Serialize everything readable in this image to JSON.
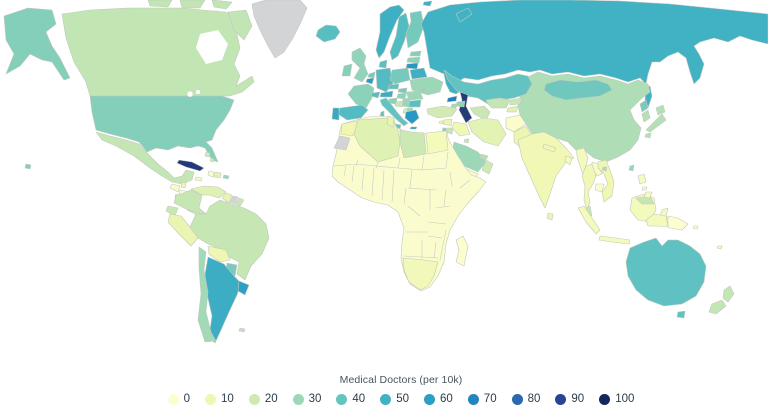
{
  "legend": {
    "title": "Medical Doctors (per 10k)",
    "stops": [
      {
        "value": "0",
        "color": "#fdfdd2"
      },
      {
        "value": "10",
        "color": "#eff7b3"
      },
      {
        "value": "20",
        "color": "#cfe9b3"
      },
      {
        "value": "30",
        "color": "#9cd8b7"
      },
      {
        "value": "40",
        "color": "#66c4be"
      },
      {
        "value": "50",
        "color": "#41b2c4"
      },
      {
        "value": "60",
        "color": "#2d9fc5"
      },
      {
        "value": "70",
        "color": "#1f86be"
      },
      {
        "value": "80",
        "color": "#2b69af"
      },
      {
        "value": "90",
        "color": "#2a4492"
      },
      {
        "value": "100",
        "color": "#14265c"
      }
    ]
  },
  "map": {
    "ocean_color": "#ffffff",
    "border_color": "#c3c8bf",
    "no_data_color": "#d2d4d6",
    "caspian_color": "#223c77",
    "countries": {
      "canada": {
        "label": "Canada",
        "value": 25,
        "color": "#c2e5b4"
      },
      "usa": {
        "label": "United States",
        "value": 36,
        "color": "#84cfba"
      },
      "greenland": {
        "label": "Greenland",
        "value": null,
        "color": "#d2d4d6"
      },
      "mexico": {
        "label": "Mexico",
        "value": 24,
        "color": "#c4e6b4"
      },
      "guatemala": {
        "label": "Guatemala",
        "value": 4,
        "color": "#fafbc9"
      },
      "belize": {
        "label": "Belize",
        "value": 11,
        "color": "#edf6b1"
      },
      "honduras": {
        "label": "Honduras",
        "value": 3,
        "color": "#fbfccc"
      },
      "el-salvador": {
        "label": "El Salvador",
        "value": 16,
        "color": "#e2f3b4"
      },
      "nicaragua": {
        "label": "Nicaragua",
        "value": 6,
        "color": "#f6fac2"
      },
      "costa-rica": {
        "label": "Costa Rica",
        "value": 25,
        "color": "#c2e5b4"
      },
      "panama": {
        "label": "Panama",
        "value": 16,
        "color": "#e2f3b4"
      },
      "cuba": {
        "label": "Cuba",
        "value": 84,
        "color": "#223a7d"
      },
      "jamaica": {
        "label": "Jamaica",
        "value": 5,
        "color": "#f8fac5"
      },
      "haiti": {
        "label": "Haiti",
        "value": 2,
        "color": "#fcfdce"
      },
      "dominican-republic": {
        "label": "Dominican Republic",
        "value": 16,
        "color": "#e2f3b4"
      },
      "puerto-rico": {
        "label": "Puerto Rico",
        "value": 31,
        "color": "#97d6b8"
      },
      "bahamas": {
        "label": "Bahamas",
        "value": 19,
        "color": "#d2eab3"
      },
      "colombia": {
        "label": "Colombia",
        "value": 23,
        "color": "#c6e6b4"
      },
      "venezuela": {
        "label": "Venezuela",
        "value": 17,
        "color": "#dff1b3"
      },
      "guyana": {
        "label": "Guyana",
        "value": 14,
        "color": "#e8f4b3"
      },
      "suriname": {
        "label": "Suriname",
        "value": null,
        "color": "#d2d4d6"
      },
      "french-guiana": {
        "label": "French Guiana",
        "value": 22,
        "color": "#c9e7b4"
      },
      "ecuador": {
        "label": "Ecuador",
        "value": 22,
        "color": "#c9e7b4"
      },
      "peru": {
        "label": "Peru",
        "value": 13,
        "color": "#eaf5b2"
      },
      "bolivia": {
        "label": "Bolivia",
        "value": 10,
        "color": "#eff7b2"
      },
      "brazil": {
        "label": "Brazil",
        "value": 23,
        "color": "#c6e6b4"
      },
      "paraguay": {
        "label": "Paraguay",
        "value": 37,
        "color": "#79cabc"
      },
      "chile": {
        "label": "Chile",
        "value": 29,
        "color": "#a2dab7"
      },
      "argentina": {
        "label": "Argentina",
        "value": 52,
        "color": "#3dadc4"
      },
      "uruguay": {
        "label": "Uruguay",
        "value": 59,
        "color": "#2fa0c5"
      },
      "falklands": {
        "label": "Falkland Islands",
        "value": null,
        "color": "#d2d4d6"
      },
      "iceland": {
        "label": "Iceland",
        "value": 43,
        "color": "#57bec1"
      },
      "norway": {
        "label": "Norway",
        "value": 51,
        "color": "#3fb0c4"
      },
      "sweden": {
        "label": "Sweden",
        "value": 44,
        "color": "#53bcc2"
      },
      "finland": {
        "label": "Finland",
        "value": 38,
        "color": "#76c9bd"
      },
      "denmark": {
        "label": "Denmark",
        "value": 42,
        "color": "#5bc0c1"
      },
      "estonia": {
        "label": "Estonia",
        "value": 35,
        "color": "#86d0ba"
      },
      "latvia": {
        "label": "Latvia",
        "value": 33,
        "color": "#8ed3b9"
      },
      "lithuania": {
        "label": "Lithuania",
        "value": 64,
        "color": "#2797c4"
      },
      "uk": {
        "label": "United Kingdom",
        "value": 32,
        "color": "#92d4b9"
      },
      "ireland": {
        "label": "Ireland",
        "value": 35,
        "color": "#86d0ba"
      },
      "netherlands": {
        "label": "Netherlands",
        "value": 38,
        "color": "#76c9bd"
      },
      "belgium": {
        "label": "Belgium",
        "value": 62,
        "color": "#2a9bc5"
      },
      "germany": {
        "label": "Germany",
        "value": 44,
        "color": "#53bcc2"
      },
      "france": {
        "label": "France",
        "value": 34,
        "color": "#8ad2b9"
      },
      "spain": {
        "label": "Spain",
        "value": 44,
        "color": "#53bcc2"
      },
      "portugal": {
        "label": "Portugal",
        "value": 55,
        "color": "#37a8c5"
      },
      "switzerland": {
        "label": "Switzerland",
        "value": 43,
        "color": "#57bec1"
      },
      "austria": {
        "label": "Austria",
        "value": 52,
        "color": "#3dadc4"
      },
      "czechia": {
        "label": "Czechia",
        "value": 41,
        "color": "#5fc1c1"
      },
      "slovakia": {
        "label": "Slovakia",
        "value": 37,
        "color": "#79cabc"
      },
      "poland": {
        "label": "Poland",
        "value": 38,
        "color": "#76c9bd"
      },
      "belarus": {
        "label": "Belarus",
        "value": 51,
        "color": "#3fb0c4"
      },
      "ukraine": {
        "label": "Ukraine",
        "value": 30,
        "color": "#9cd8b7"
      },
      "moldova": {
        "label": "Moldova",
        "value": 32,
        "color": "#92d4b9"
      },
      "hungary": {
        "label": "Hungary",
        "value": 34,
        "color": "#8ad2b9"
      },
      "romania": {
        "label": "Romania",
        "value": 30,
        "color": "#9cd8b7"
      },
      "bulgaria": {
        "label": "Bulgaria",
        "value": 42,
        "color": "#5bc0c1"
      },
      "serbia": {
        "label": "Serbia",
        "value": 31,
        "color": "#97d6b8"
      },
      "croatia": {
        "label": "Croatia",
        "value": 34,
        "color": "#8ad2b9"
      },
      "bosnia": {
        "label": "Bosnia and Herzegovina",
        "value": 22,
        "color": "#c9e7b4"
      },
      "albania": {
        "label": "Albania",
        "value": 19,
        "color": "#d2eab3"
      },
      "north-macedonia": {
        "label": "North Macedonia",
        "value": 29,
        "color": "#a2dab7"
      },
      "greece": {
        "label": "Greece",
        "value": 63,
        "color": "#2899c4"
      },
      "italy": {
        "label": "Italy",
        "value": 40,
        "color": "#63c3c0"
      },
      "cyprus": {
        "label": "Cyprus",
        "value": 13,
        "color": "#eaf5b2"
      },
      "russia": {
        "label": "Russia",
        "value": 50,
        "color": "#41b2c4"
      },
      "kazakhstan": {
        "label": "Kazakhstan",
        "value": 40,
        "color": "#63c3c0"
      },
      "uzbekistan": {
        "label": "Uzbekistan",
        "value": 24,
        "color": "#c4e6b4"
      },
      "turkmenistan": {
        "label": "Turkmenistan",
        "value": 22,
        "color": "#c9e7b4"
      },
      "kyrgyzstan": {
        "label": "Kyrgyzstan",
        "value": 22,
        "color": "#c9e7b4"
      },
      "tajikistan": {
        "label": "Tajikistan",
        "value": 17,
        "color": "#dff1b3"
      },
      "georgia": {
        "label": "Georgia",
        "value": 71,
        "color": "#2180bb"
      },
      "azerbaijan": {
        "label": "Azerbaijan",
        "value": 32,
        "color": "#92d4b9"
      },
      "armenia": {
        "label": "Armenia",
        "value": 29,
        "color": "#a2dab7"
      },
      "turkey": {
        "label": "Turkey",
        "value": 19,
        "color": "#d2eab3"
      },
      "syria": {
        "label": "Syria",
        "value": 12,
        "color": "#ecf6b2"
      },
      "israel": {
        "label": "Israel",
        "value": 36,
        "color": "#81ceba"
      },
      "jordan": {
        "label": "Jordan",
        "value": 23,
        "color": "#c6e6b4"
      },
      "iraq": {
        "label": "Iraq",
        "value": 9,
        "color": "#f1f8b6"
      },
      "iran": {
        "label": "Iran",
        "value": 16,
        "color": "#e2f3b4"
      },
      "saudi-arabia": {
        "label": "Saudi Arabia",
        "value": 30,
        "color": "#9cd8b7"
      },
      "kuwait": {
        "label": "Kuwait",
        "value": 23,
        "color": "#c6e6b4"
      },
      "uae": {
        "label": "United Arab Emirates",
        "value": 26,
        "color": "#b5e0b6"
      },
      "oman": {
        "label": "Oman",
        "value": 20,
        "color": "#cfe9b3"
      },
      "yemen": {
        "label": "Yemen",
        "value": 5,
        "color": "#f8fac5"
      },
      "afghanistan": {
        "label": "Afghanistan",
        "value": 3,
        "color": "#fbfccc"
      },
      "pakistan": {
        "label": "Pakistan",
        "value": 11,
        "color": "#edf6b1"
      },
      "india": {
        "label": "India",
        "value": 9,
        "color": "#f1f8b6"
      },
      "nepal": {
        "label": "Nepal",
        "value": 9,
        "color": "#f1f8b6"
      },
      "bangladesh": {
        "label": "Bangladesh",
        "value": 7,
        "color": "#f4f9bc"
      },
      "sri-lanka": {
        "label": "Sri Lanka",
        "value": 12,
        "color": "#ecf6b2"
      },
      "myanmar": {
        "label": "Myanmar",
        "value": 7,
        "color": "#f4f9bc"
      },
      "thailand": {
        "label": "Thailand",
        "value": 9,
        "color": "#f1f8b6"
      },
      "laos": {
        "label": "Laos",
        "value": 4,
        "color": "#fafbc9"
      },
      "cambodia": {
        "label": "Cambodia",
        "value": 2,
        "color": "#fcfdce"
      },
      "vietnam": {
        "label": "Vietnam",
        "value": 10,
        "color": "#eff7b2"
      },
      "malaysia": {
        "label": "Malaysia",
        "value": 23,
        "color": "#c6e6b4"
      },
      "indonesia": {
        "label": "Indonesia",
        "value": 7,
        "color": "#f4f9bc"
      },
      "philippines": {
        "label": "Philippines",
        "value": 6,
        "color": "#f6fac2"
      },
      "china": {
        "label": "China",
        "value": 27,
        "color": "#aeddb6"
      },
      "mongolia": {
        "label": "Mongolia",
        "value": 39,
        "color": "#6fc7be"
      },
      "north-korea": {
        "label": "North Korea",
        "value": 37,
        "color": "#79cabc"
      },
      "south-korea": {
        "label": "South Korea",
        "value": 26,
        "color": "#b5e0b6"
      },
      "japan": {
        "label": "Japan",
        "value": 26,
        "color": "#b5e0b6"
      },
      "taiwan": {
        "label": "Taiwan",
        "value": 31,
        "color": "#97d6b8"
      },
      "papua-new-guinea": {
        "label": "Papua New Guinea",
        "value": 1,
        "color": "#fdfdd2"
      },
      "solomon-islands": {
        "label": "Solomon Islands",
        "value": 2,
        "color": "#fcfdce"
      },
      "fiji": {
        "label": "Fiji",
        "value": 9,
        "color": "#f1f8b6"
      },
      "australia": {
        "label": "Australia",
        "value": 41,
        "color": "#5fc1c1"
      },
      "new-zealand": {
        "label": "New Zealand",
        "value": 24,
        "color": "#c4e6b4"
      },
      "morocco": {
        "label": "Morocco",
        "value": 10,
        "color": "#eff7b2"
      },
      "western-sahara": {
        "label": "Western Sahara",
        "value": null,
        "color": "#d2d4d6"
      },
      "algeria": {
        "label": "Algeria",
        "value": 17,
        "color": "#dff1b3"
      },
      "tunisia": {
        "label": "Tunisia",
        "value": 13,
        "color": "#eaf5b2"
      },
      "libya": {
        "label": "Libya",
        "value": 21,
        "color": "#cce8b3"
      },
      "egypt": {
        "label": "Egypt",
        "value": 7,
        "color": "#f4f9bc"
      },
      "africa-base": {
        "label": "Sub-Saharan Africa (various)",
        "value": 2,
        "color": "#fbfcce"
      },
      "south-africa": {
        "label": "South Africa",
        "value": 8,
        "color": "#f2f8b9"
      },
      "madagascar": {
        "label": "Madagascar",
        "value": 2,
        "color": "#fcfdce"
      },
      "hawaii": {
        "label": "Hawaii (US)",
        "value": 36,
        "color": "#84cfba"
      }
    }
  }
}
